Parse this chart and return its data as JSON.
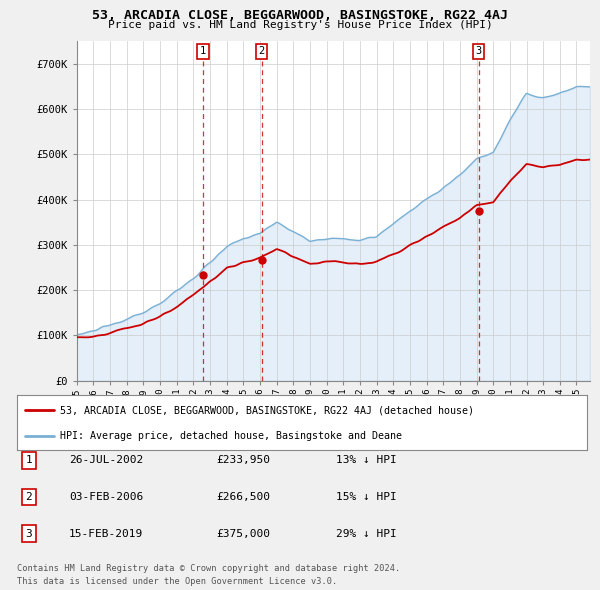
{
  "title": "53, ARCADIA CLOSE, BEGGARWOOD, BASINGSTOKE, RG22 4AJ",
  "subtitle": "Price paid vs. HM Land Registry's House Price Index (HPI)",
  "legend_line1": "53, ARCADIA CLOSE, BEGGARWOOD, BASINGSTOKE, RG22 4AJ (detached house)",
  "legend_line2": "HPI: Average price, detached house, Basingstoke and Deane",
  "footnote1": "Contains HM Land Registry data © Crown copyright and database right 2024.",
  "footnote2": "This data is licensed under the Open Government Licence v3.0.",
  "sale_labels": [
    "1",
    "2",
    "3"
  ],
  "sale_dates_text": [
    "26-JUL-2002",
    "03-FEB-2006",
    "15-FEB-2019"
  ],
  "sale_prices_text": [
    "£233,950",
    "£266,500",
    "£375,000"
  ],
  "sale_hpi_text": [
    "13% ↓ HPI",
    "15% ↓ HPI",
    "29% ↓ HPI"
  ],
  "sale_years": [
    2002.57,
    2006.09,
    2019.12
  ],
  "sale_prices": [
    233950,
    266500,
    375000
  ],
  "red_color": "#cc0000",
  "blue_color": "#7ab0d4",
  "blue_fill": "#aaccee",
  "background_color": "#f0f0f0",
  "plot_bg_color": "#ffffff",
  "ylim": [
    0,
    750000
  ],
  "yticks": [
    0,
    100000,
    200000,
    300000,
    400000,
    500000,
    600000,
    700000
  ],
  "ytick_labels": [
    "£0",
    "£100K",
    "£200K",
    "£300K",
    "£400K",
    "£500K",
    "£600K",
    "£700K"
  ]
}
